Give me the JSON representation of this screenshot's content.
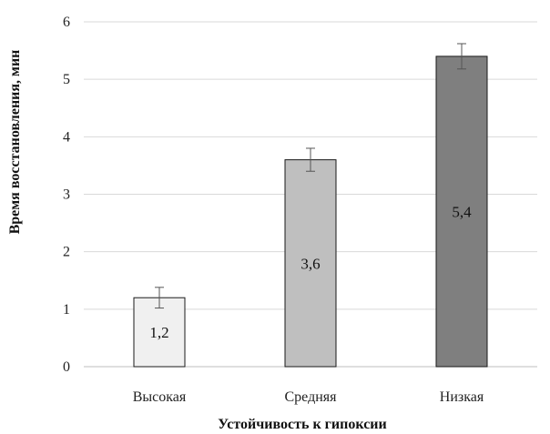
{
  "chart_data": {
    "type": "bar",
    "categories": [
      "Высокая",
      "Средняя",
      "Низкая"
    ],
    "values": [
      1.2,
      3.6,
      5.4
    ],
    "value_labels": [
      "1,2",
      "3,6",
      "5,4"
    ],
    "error": [
      0.18,
      0.2,
      0.22
    ],
    "bar_colors": [
      "#f0f0f0",
      "#bfbfbf",
      "#7f7f7f"
    ],
    "xlabel": "Устойчивость к гипоксии",
    "ylabel": "Время восстановления, мин",
    "ylim": [
      0,
      6
    ],
    "yticks": [
      0,
      1,
      2,
      3,
      4,
      5,
      6
    ],
    "grid": true
  }
}
